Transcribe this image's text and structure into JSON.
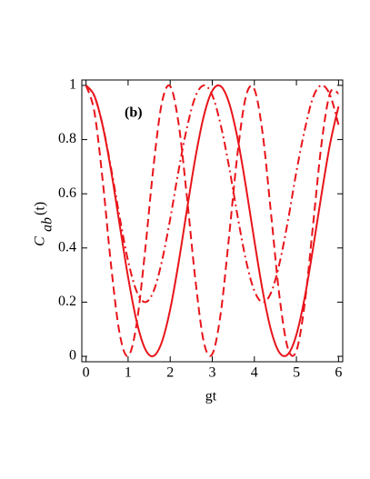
{
  "chart_data": {
    "type": "line",
    "annotation": "(b)",
    "x_label": "gt",
    "y_label": "C",
    "y_label_sub": "ab",
    "y_label_suffix": "(t)",
    "x": [
      0,
      0.2,
      0.4,
      0.6,
      0.8,
      1.0,
      1.2,
      1.4,
      1.6,
      1.8,
      2.0,
      2.2,
      2.4,
      2.6,
      2.8,
      3.0,
      3.2,
      3.4,
      3.6,
      3.8,
      4.0,
      4.2,
      4.4,
      4.6,
      4.8,
      5.0,
      5.2,
      5.4,
      5.6,
      5.8,
      6.0
    ],
    "series": [
      {
        "color": "#e8141a",
        "dash": "solid",
        "values": [
          1,
          0.961,
          0.848,
          0.681,
          0.485,
          0.292,
          0.131,
          0.029,
          0.001,
          0.052,
          0.173,
          0.346,
          0.543,
          0.734,
          0.888,
          0.98,
          0.997,
          0.935,
          0.805,
          0.626,
          0.427,
          0.24,
          0.094,
          0.013,
          0.008,
          0.08,
          0.22,
          0.404,
          0.602,
          0.785,
          0.922
        ]
      },
      {
        "color": "#e8141a",
        "dash": "dashed",
        "values": [
          1,
          0.901,
          0.643,
          0.329,
          0.083,
          0.001,
          0.117,
          0.384,
          0.696,
          0.934,
          0.997,
          0.859,
          0.585,
          0.281,
          0.052,
          0.008,
          0.158,
          0.444,
          0.748,
          0.96,
          0.986,
          0.819,
          0.521,
          0.217,
          0.028,
          0.021,
          0.199,
          0.493,
          0.789,
          0.972,
          0.97
        ]
      },
      {
        "color": "#e8141a",
        "dash": "dashdot",
        "values": [
          1,
          0.96,
          0.85,
          0.69,
          0.513,
          0.352,
          0.241,
          0.2,
          0.238,
          0.349,
          0.507,
          0.686,
          0.845,
          0.959,
          1,
          0.964,
          0.854,
          0.699,
          0.519,
          0.355,
          0.242,
          0.2,
          0.236,
          0.345,
          0.502,
          0.682,
          0.838,
          0.958,
          1,
          0.964,
          0.855
        ]
      }
    ],
    "xlim": [
      -0.1,
      6.1
    ],
    "ylim": [
      -0.02,
      1.02
    ],
    "xticks": [
      0,
      1,
      2,
      3,
      4,
      5,
      6
    ],
    "yticks": [
      0,
      0.2,
      0.4,
      0.6,
      0.8,
      1
    ]
  }
}
